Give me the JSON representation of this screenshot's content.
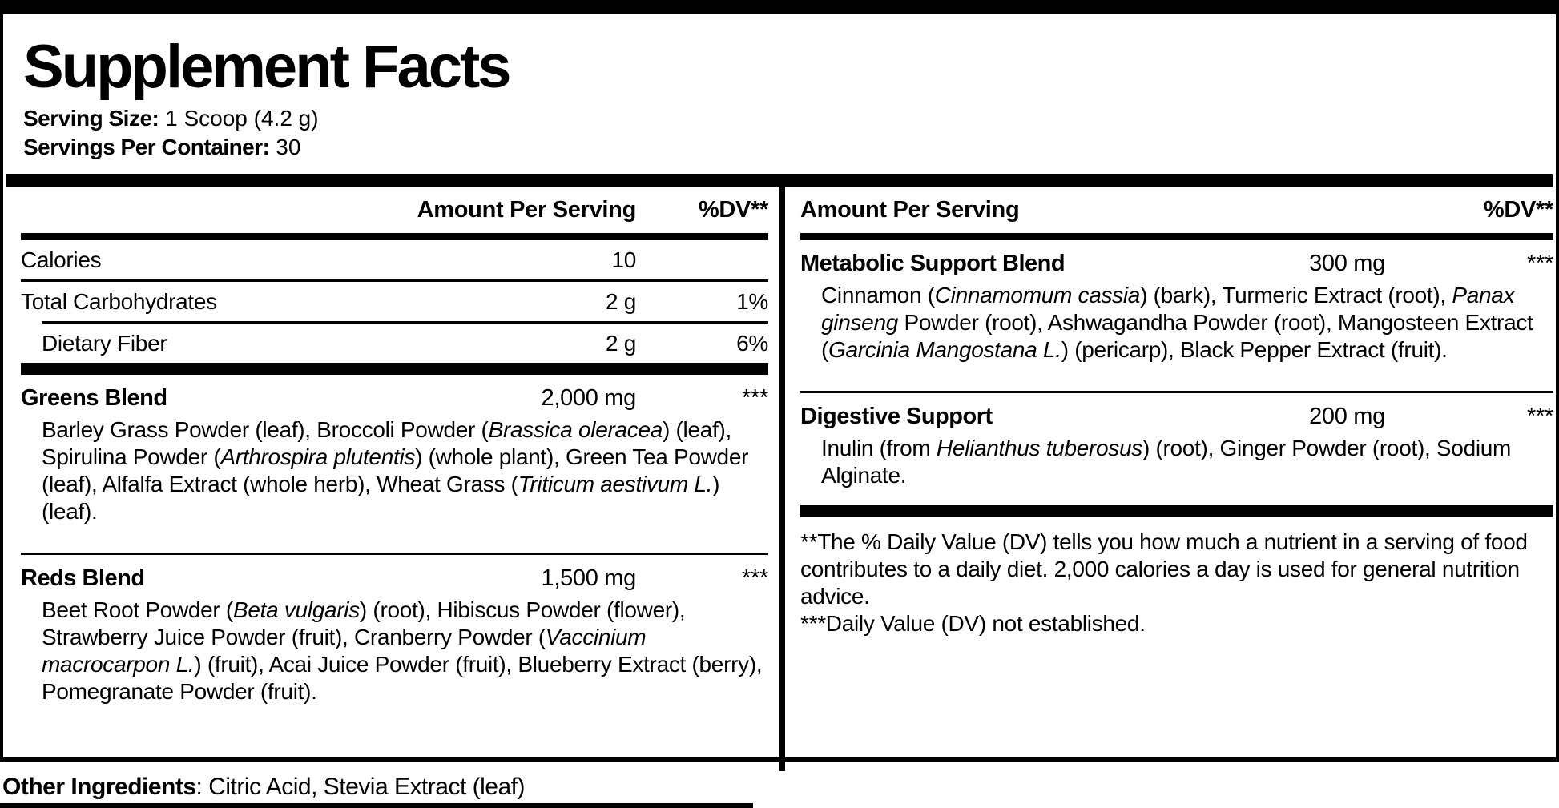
{
  "title": "Supplement Facts",
  "serving": {
    "size_label": "Serving Size:",
    "size_value": " 1 Scoop (4.2 g)",
    "count_label": "Servings Per Container:",
    "count_value": " 30"
  },
  "columns": {
    "left": {
      "header": {
        "amount": "Amount Per Serving",
        "dv": "%DV**"
      },
      "rows": [
        {
          "name": "Calories",
          "amount": "10",
          "dv": ""
        },
        {
          "name": "Total Carbohydrates",
          "amount": "2 g",
          "dv": "1%"
        },
        {
          "name": "Dietary Fiber",
          "amount": "2 g",
          "dv": "6%"
        }
      ],
      "blends": [
        {
          "name": "Greens Blend",
          "amount": "2,000 mg",
          "dv": "***",
          "desc": [
            {
              "t": "Barley Grass Powder (leaf), Broccoli Powder (",
              "i": false
            },
            {
              "t": "Brassica oleracea",
              "i": true
            },
            {
              "t": ") (leaf), Spirulina Powder (",
              "i": false
            },
            {
              "t": "Arthrospira plutentis",
              "i": true
            },
            {
              "t": ") (whole plant), Green Tea Powder (leaf), Alfalfa Extract (whole herb), Wheat Grass (",
              "i": false
            },
            {
              "t": "Triticum aestivum L.",
              "i": true
            },
            {
              "t": ") (leaf).",
              "i": false
            }
          ]
        },
        {
          "name": "Reds Blend",
          "amount": "1,500 mg",
          "dv": "***",
          "desc": [
            {
              "t": "Beet Root Powder (",
              "i": false
            },
            {
              "t": "Beta vulgaris",
              "i": true
            },
            {
              "t": ") (root), Hibiscus Powder (flower), Strawberry Juice Powder (fruit), Cranberry Powder (",
              "i": false
            },
            {
              "t": "Vaccinium macrocarpon L.",
              "i": true
            },
            {
              "t": ") (fruit), Acai Juice Powder (fruit), Blueberry Extract (berry), Pomegranate Powder (fruit).",
              "i": false
            }
          ]
        }
      ]
    },
    "right": {
      "header": {
        "amount": "Amount Per Serving",
        "dv": "%DV**"
      },
      "blends": [
        {
          "name": "Metabolic Support Blend",
          "amount": "300 mg",
          "dv": "***",
          "desc": [
            {
              "t": "Cinnamon (",
              "i": false
            },
            {
              "t": "Cinnamomum cassia",
              "i": true
            },
            {
              "t": ") (bark), Turmeric Extract (root), ",
              "i": false
            },
            {
              "t": "Panax ginseng",
              "i": true
            },
            {
              "t": " Powder (root), Ashwagandha Powder (root), Mangosteen Extract (",
              "i": false
            },
            {
              "t": "Garcinia Mangostana L.",
              "i": true
            },
            {
              "t": ") (pericarp), Black Pepper Extract (fruit).",
              "i": false
            }
          ]
        },
        {
          "name": "Digestive Support",
          "amount": "200 mg",
          "dv": "***",
          "desc": [
            {
              "t": "Inulin (from ",
              "i": false
            },
            {
              "t": "Helianthus tuberosus",
              "i": true
            },
            {
              "t": ") (root), Ginger Powder (root), Sodium Alginate.",
              "i": false
            }
          ]
        }
      ],
      "footnotes": [
        "**The % Daily Value (DV) tells you how much a nutrient in a serving of food contributes to a daily diet. 2,000 calories a day is used for general nutrition advice.",
        "***Daily Value (DV) not established."
      ]
    }
  },
  "other_ingredients": {
    "label": "Other Ingredients",
    "value": ": Citric Acid, Stevia Extract (leaf)"
  },
  "colors": {
    "ink": "#000000",
    "paper": "#ffffff"
  }
}
